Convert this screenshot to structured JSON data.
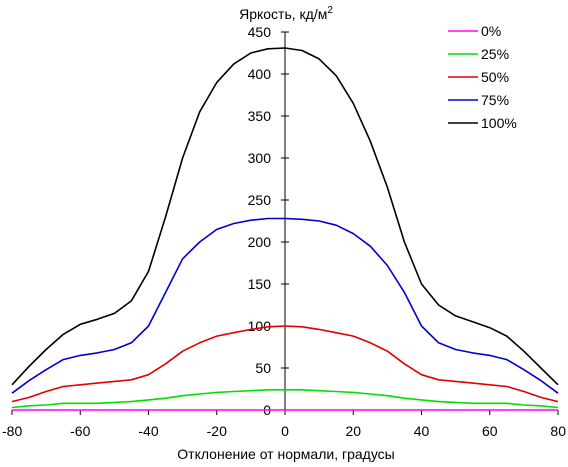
{
  "chart_data": {
    "type": "line",
    "title": "",
    "ylabel": "Яркость, кд/м",
    "ylabel_superscript": "2",
    "xlabel": "Отклонение от нормали, градусы",
    "xlim": [
      -80,
      80
    ],
    "ylim": [
      0,
      450
    ],
    "xticks": [
      "-80",
      "-60",
      "-40",
      "-20",
      "0",
      "20",
      "40",
      "60",
      "80"
    ],
    "yticks": [
      "0",
      "50",
      "100",
      "150",
      "200",
      "250",
      "300",
      "350",
      "400",
      "450"
    ],
    "grid": false,
    "legend_position": "top-right",
    "x": [
      -80,
      -75,
      -70,
      -65,
      -60,
      -55,
      -50,
      -45,
      -40,
      -35,
      -30,
      -25,
      -20,
      -15,
      -10,
      -5,
      0,
      5,
      10,
      15,
      20,
      25,
      30,
      35,
      40,
      45,
      50,
      55,
      60,
      65,
      70,
      75,
      80
    ],
    "series": [
      {
        "name": "0%",
        "color": "#ff00ff",
        "values": [
          0,
          0,
          0,
          0,
          0,
          0,
          0,
          0,
          0,
          0,
          0,
          0,
          0,
          0,
          0,
          0,
          0,
          0,
          0,
          0,
          0,
          0,
          0,
          0,
          0,
          0,
          0,
          0,
          0,
          0,
          0,
          0,
          0
        ]
      },
      {
        "name": "25%",
        "color": "#00e000",
        "values": [
          3,
          5,
          6,
          8,
          8,
          8,
          9,
          10,
          12,
          14,
          17,
          19,
          21,
          22,
          23,
          24,
          24,
          24,
          23,
          22,
          21,
          19,
          17,
          14,
          12,
          10,
          9,
          8,
          8,
          8,
          6,
          5,
          3
        ]
      },
      {
        "name": "50%",
        "color": "#e00000",
        "values": [
          10,
          15,
          22,
          28,
          30,
          32,
          34,
          36,
          42,
          55,
          70,
          80,
          88,
          92,
          96,
          99,
          100,
          99,
          96,
          92,
          88,
          80,
          70,
          55,
          42,
          36,
          34,
          32,
          30,
          28,
          22,
          15,
          10
        ]
      },
      {
        "name": "75%",
        "color": "#0000d0",
        "values": [
          20,
          35,
          48,
          60,
          65,
          68,
          72,
          80,
          100,
          140,
          180,
          200,
          215,
          222,
          226,
          228,
          228,
          227,
          225,
          220,
          210,
          195,
          172,
          140,
          100,
          80,
          72,
          68,
          65,
          60,
          48,
          35,
          20
        ]
      },
      {
        "name": "100%",
        "color": "#000000",
        "values": [
          30,
          52,
          72,
          90,
          102,
          108,
          115,
          130,
          165,
          230,
          300,
          355,
          390,
          412,
          425,
          430,
          431,
          428,
          418,
          398,
          365,
          320,
          265,
          200,
          150,
          125,
          112,
          105,
          98,
          88,
          70,
          50,
          30
        ]
      }
    ]
  }
}
